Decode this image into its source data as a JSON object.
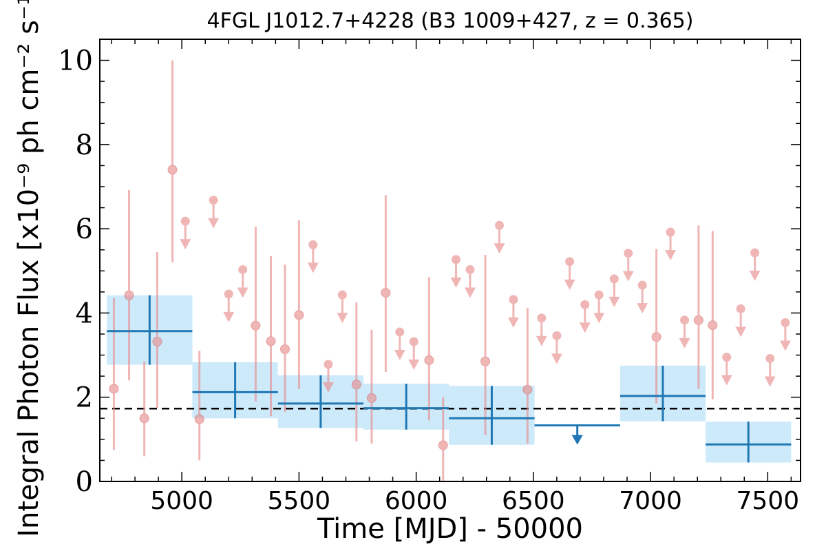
{
  "chart_data": {
    "type": "scatter",
    "title": "4FGL J1012.7+4228 (B3 1009+427, z = 0.365)",
    "xlabel": "Time [MJD] - 50000",
    "ylabel": "Integral Photon Flux [x10⁻⁹ ph cm⁻² s⁻¹]",
    "xlim": [
      4650,
      7640
    ],
    "ylim": [
      0,
      10.5
    ],
    "xticks": [
      5000,
      5500,
      6000,
      6500,
      7000,
      7500
    ],
    "yticks": [
      0,
      2,
      4,
      6,
      8,
      10
    ],
    "reference_level": 1.73,
    "colors": {
      "short_bin": "#e88a8a",
      "long_bin_line": "#1f77b4",
      "long_bin_box": "#cdeafb",
      "reference_line": "#000000"
    },
    "series": [
      {
        "points": [
          {
            "x": 4710,
            "y": 2.2,
            "ylo": 0.75,
            "yhi": 4.35
          },
          {
            "x": 4775,
            "y": 4.42,
            "ylo": 2.4,
            "yhi": 6.92
          },
          {
            "x": 4840,
            "y": 1.5,
            "ylo": 0.6,
            "yhi": 2.85
          },
          {
            "x": 4895,
            "y": 3.32,
            "ylo": 1.75,
            "yhi": 5.45
          },
          {
            "x": 4960,
            "y": 7.4,
            "ylo": 5.2,
            "yhi": 10.0
          },
          {
            "x": 5075,
            "y": 1.48,
            "ylo": 0.5,
            "yhi": 3.1
          },
          {
            "x": 5315,
            "y": 3.7,
            "ylo": 1.9,
            "yhi": 6.05
          },
          {
            "x": 5380,
            "y": 3.33,
            "ylo": 1.55,
            "yhi": 5.35
          },
          {
            "x": 5440,
            "y": 3.14,
            "ylo": 1.65,
            "yhi": 5.15
          },
          {
            "x": 5500,
            "y": 3.95,
            "ylo": 2.2,
            "yhi": 6.2
          },
          {
            "x": 5745,
            "y": 2.3,
            "ylo": 0.95,
            "yhi": 4.25
          },
          {
            "x": 5810,
            "y": 1.98,
            "ylo": 0.9,
            "yhi": 3.6
          },
          {
            "x": 5870,
            "y": 4.48,
            "ylo": 2.6,
            "yhi": 6.8
          },
          {
            "x": 6055,
            "y": 2.88,
            "ylo": 1.45,
            "yhi": 4.85
          },
          {
            "x": 6115,
            "y": 0.86,
            "ylo": 0.0,
            "yhi": 2.0
          },
          {
            "x": 6295,
            "y": 2.85,
            "ylo": 1.1,
            "yhi": 5.38
          },
          {
            "x": 6475,
            "y": 2.18,
            "ylo": 0.9,
            "yhi": 4.12
          },
          {
            "x": 7025,
            "y": 3.43,
            "ylo": 1.85,
            "yhi": 5.52
          },
          {
            "x": 7205,
            "y": 3.83,
            "ylo": 2.2,
            "yhi": 6.08
          },
          {
            "x": 7265,
            "y": 3.71,
            "ylo": 1.95,
            "yhi": 5.95
          }
        ],
        "upper_limits": [
          {
            "x": 5015,
            "y": 6.18
          },
          {
            "x": 5135,
            "y": 6.68
          },
          {
            "x": 5200,
            "y": 4.45
          },
          {
            "x": 5260,
            "y": 5.03
          },
          {
            "x": 5560,
            "y": 5.62
          },
          {
            "x": 5625,
            "y": 2.78
          },
          {
            "x": 5685,
            "y": 4.43
          },
          {
            "x": 5930,
            "y": 3.55
          },
          {
            "x": 5990,
            "y": 3.32
          },
          {
            "x": 6170,
            "y": 5.27
          },
          {
            "x": 6230,
            "y": 5.03
          },
          {
            "x": 6355,
            "y": 6.08
          },
          {
            "x": 6415,
            "y": 4.32
          },
          {
            "x": 6535,
            "y": 3.88
          },
          {
            "x": 6600,
            "y": 3.46
          },
          {
            "x": 6655,
            "y": 5.22
          },
          {
            "x": 6720,
            "y": 4.2
          },
          {
            "x": 6780,
            "y": 4.43
          },
          {
            "x": 6845,
            "y": 4.81
          },
          {
            "x": 6905,
            "y": 5.42
          },
          {
            "x": 6965,
            "y": 4.66
          },
          {
            "x": 7085,
            "y": 5.92
          },
          {
            "x": 7145,
            "y": 3.83
          },
          {
            "x": 7325,
            "y": 2.95
          },
          {
            "x": 7385,
            "y": 4.1
          },
          {
            "x": 7445,
            "y": 5.43
          },
          {
            "x": 7510,
            "y": 2.92
          },
          {
            "x": 7575,
            "y": 3.77
          }
        ]
      },
      {
        "bins": [
          {
            "x0": 4680,
            "x1": 5045,
            "y": 3.57,
            "ylo": 2.77,
            "yhi": 4.42
          },
          {
            "x0": 5045,
            "x1": 5410,
            "y": 2.12,
            "ylo": 1.5,
            "yhi": 2.83
          },
          {
            "x0": 5410,
            "x1": 5775,
            "y": 1.85,
            "ylo": 1.27,
            "yhi": 2.52
          },
          {
            "x0": 5775,
            "x1": 6140,
            "y": 1.74,
            "ylo": 1.23,
            "yhi": 2.32
          },
          {
            "x0": 6140,
            "x1": 6505,
            "y": 1.5,
            "ylo": 0.87,
            "yhi": 2.27
          },
          {
            "x0": 6870,
            "x1": 7235,
            "y": 2.03,
            "ylo": 1.43,
            "yhi": 2.75
          },
          {
            "x0": 7235,
            "x1": 7600,
            "y": 0.88,
            "ylo": 0.45,
            "yhi": 1.42
          }
        ],
        "upper_limits": [
          {
            "x0": 6505,
            "x1": 6870,
            "y": 1.33
          }
        ]
      }
    ]
  }
}
